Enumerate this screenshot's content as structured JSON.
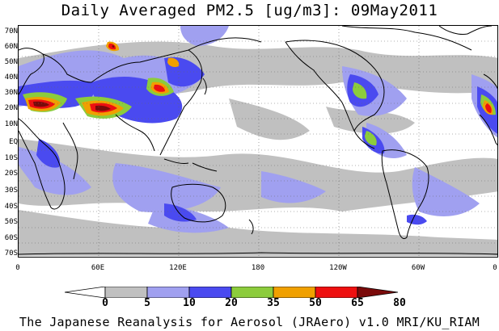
{
  "title": "Daily Averaged PM2.5 [ug/m3]: 09May2011",
  "lat_ticks": [
    "70N",
    "60N",
    "50N",
    "40N",
    "30N",
    "20N",
    "10N",
    "EQ",
    "10S",
    "20S",
    "30S",
    "40S",
    "50S",
    "60S",
    "70S"
  ],
  "lon_ticks": [
    "0",
    "60E",
    "120E",
    "180",
    "120W",
    "60W",
    "0"
  ],
  "colorbar": {
    "labels": [
      "0",
      "5",
      "10",
      "20",
      "35",
      "50",
      "65",
      "80"
    ],
    "colors": [
      "#ffffff",
      "#c0c0c0",
      "#a0a0f0",
      "#4a4af0",
      "#8ccc3c",
      "#f0a000",
      "#ee1010",
      "#7a0a0a"
    ]
  },
  "credit": "The Japanese Reanalysis for Aerosol (JRAero) v1.0 MRI/KU_RIAM",
  "colors": {
    "land_outline": "#000000",
    "grid": "#555555"
  }
}
